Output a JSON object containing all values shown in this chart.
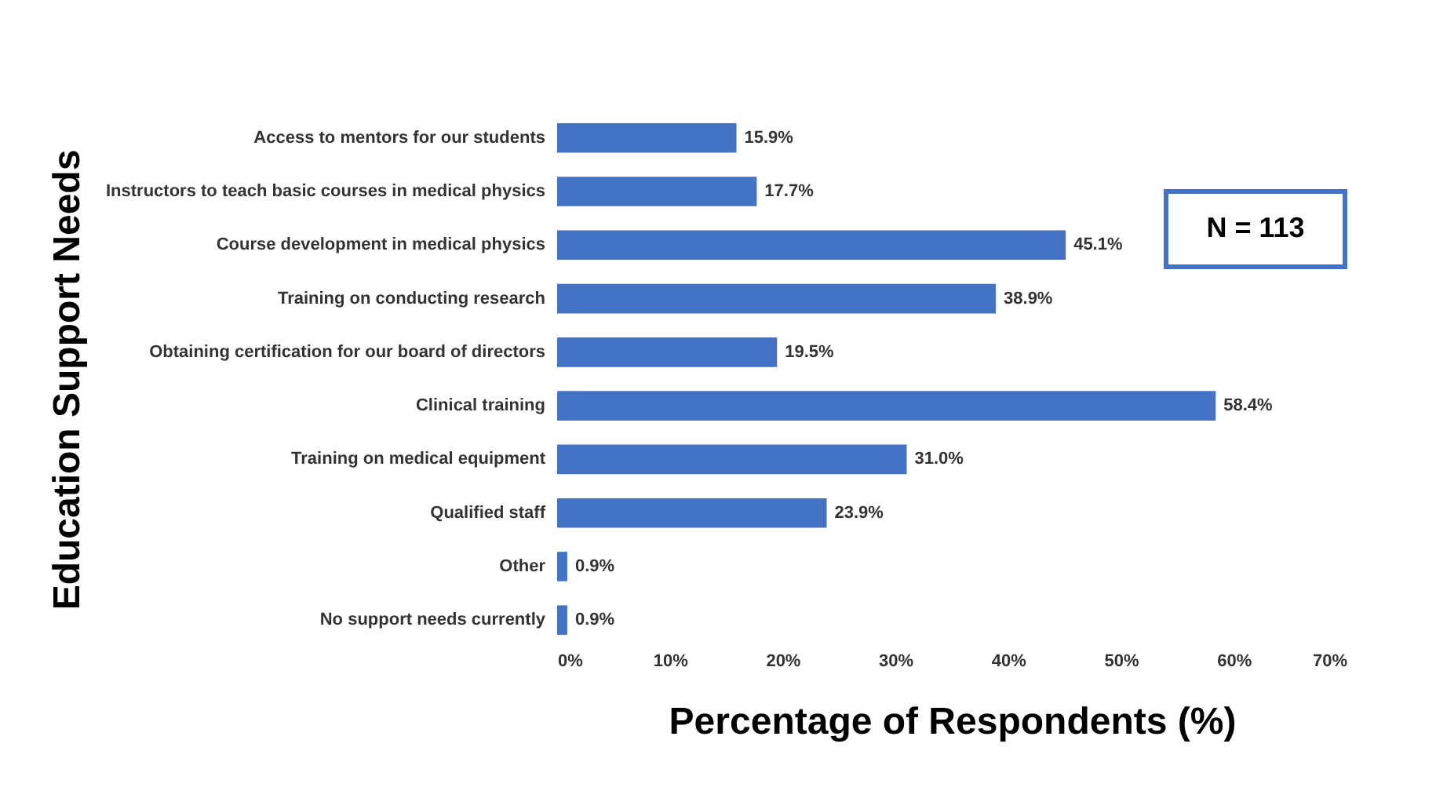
{
  "chart_data": {
    "type": "bar",
    "orientation": "horizontal",
    "xlabel": "Percentage of Respondents (%)",
    "ylabel": "Education Support Needs",
    "categories": [
      "Access to mentors for our students",
      "Instructors to teach basic courses in medical physics",
      "Course development in medical physics",
      "Training on conducting research",
      "Obtaining certification for our board of directors",
      "Clinical training",
      "Training on medical equipment",
      "Qualified staff",
      "Other",
      "No support needs currently"
    ],
    "values": [
      15.9,
      17.7,
      45.1,
      38.9,
      19.5,
      58.4,
      31.0,
      23.9,
      0.9,
      0.9
    ],
    "value_labels": [
      "15.9%",
      "17.7%",
      "45.1%",
      "38.9%",
      "19.5%",
      "58.4%",
      "31.0%",
      "23.9%",
      "0.9%",
      "0.9%"
    ],
    "color": "#4472c4",
    "xlim": [
      0,
      70
    ],
    "xticks": [
      {
        "value": 0,
        "label": "0%"
      },
      {
        "value": 10,
        "label": "10%"
      },
      {
        "value": 20,
        "label": "20%"
      },
      {
        "value": 30,
        "label": "30%"
      },
      {
        "value": 40,
        "label": "40%"
      },
      {
        "value": 50,
        "label": "50%"
      },
      {
        "value": 60,
        "label": "60%"
      },
      {
        "value": 70,
        "label": "70%"
      }
    ],
    "grid": false,
    "annotations": [
      "N = 113"
    ]
  }
}
